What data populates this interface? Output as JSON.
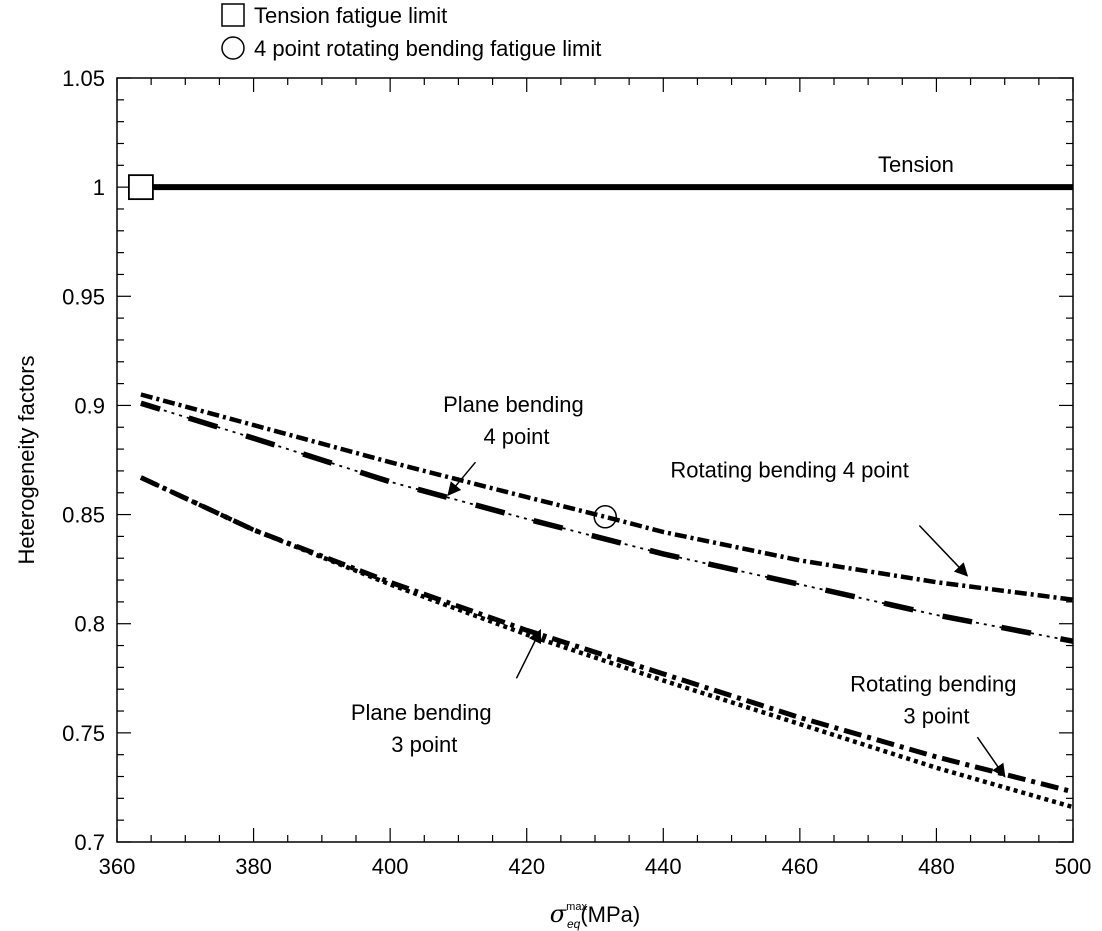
{
  "chart_data": {
    "type": "line",
    "xlabel": {
      "symbol": "σ",
      "superscript": "max",
      "subscript": "eq",
      "unit": "(MPa)"
    },
    "ylabel": "Heterogeneity factors",
    "xlim": [
      360,
      500
    ],
    "ylim": [
      0.7,
      1.05
    ],
    "xticks": [
      360,
      380,
      400,
      420,
      440,
      460,
      480,
      500
    ],
    "yticks": [
      0.7,
      0.75,
      0.8,
      0.85,
      0.9,
      0.95,
      1,
      1.05
    ],
    "yticklabels": [
      "0.7",
      "0.75",
      "0.8",
      "0.85",
      "0.9",
      "0.95",
      "1",
      "1.05"
    ],
    "legend": [
      {
        "marker": "square",
        "label": "Tension fatigue limit"
      },
      {
        "marker": "circle",
        "label": "4 point rotating bending fatigue limit"
      }
    ],
    "series": [
      {
        "key": "tension",
        "x": [
          363.5,
          500
        ],
        "y": [
          1.0,
          1.0
        ]
      },
      {
        "key": "rb4",
        "x": [
          363.5,
          380,
          400,
          420,
          431.5,
          440,
          460,
          480,
          500
        ],
        "y": [
          0.905,
          0.891,
          0.874,
          0.858,
          0.849,
          0.842,
          0.829,
          0.819,
          0.811
        ]
      },
      {
        "key": "pb4",
        "x": [
          363.5,
          380,
          400,
          420,
          440,
          460,
          480,
          500
        ],
        "y": [
          0.901,
          0.885,
          0.865,
          0.848,
          0.832,
          0.818,
          0.804,
          0.792
        ]
      },
      {
        "key": "rb3",
        "x": [
          363.5,
          380,
          400,
          420,
          440,
          460,
          480,
          500
        ],
        "y": [
          0.867,
          0.843,
          0.819,
          0.797,
          0.777,
          0.757,
          0.739,
          0.723
        ]
      },
      {
        "key": "pb3",
        "x": [
          363.5,
          380,
          400,
          420,
          440,
          460,
          480,
          500
        ],
        "y": [
          0.867,
          0.843,
          0.818,
          0.795,
          0.774,
          0.754,
          0.734,
          0.716
        ]
      }
    ],
    "markers": [
      {
        "key": "tension-limit",
        "shape": "square",
        "x": 363.5,
        "y": 1.0
      },
      {
        "key": "rb4-limit",
        "shape": "circle",
        "x": 431.5,
        "y": 0.849
      }
    ],
    "annotations": {
      "tension": {
        "lines": [
          "Tension"
        ],
        "x": 477,
        "y": 1.007
      },
      "pb4": {
        "lines": [
          "Plane bending",
          "4 point"
        ],
        "x": 418.5,
        "y": 0.897,
        "arrow_from": [
          412.5,
          0.874
        ],
        "arrow_to": [
          408.5,
          0.859
        ]
      },
      "rb4": {
        "lines": [
          "Rotating bending 4 point"
        ],
        "x": 458.5,
        "y": 0.867,
        "arrow_from": [
          477.5,
          0.845
        ],
        "arrow_to": [
          484.5,
          0.822
        ]
      },
      "pb3": {
        "lines": [
          "Plane bending",
          "3 point"
        ],
        "x": 405,
        "y": 0.756,
        "arrow_from": [
          418.5,
          0.775
        ],
        "arrow_to": [
          422,
          0.797
        ]
      },
      "rb3": {
        "lines": [
          "Rotating bending",
          "3 point"
        ],
        "x": 480,
        "y": 0.769,
        "arrow_from": [
          486,
          0.748
        ],
        "arrow_to": [
          490,
          0.73
        ]
      }
    }
  }
}
